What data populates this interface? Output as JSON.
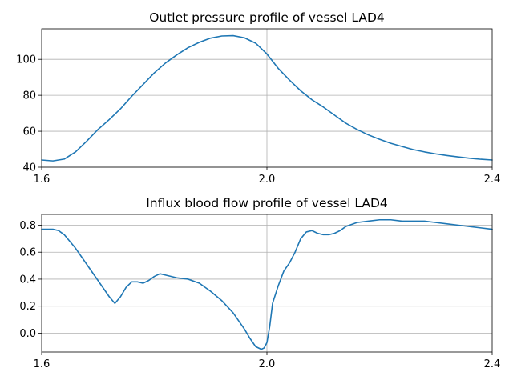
{
  "chart_data": [
    {
      "type": "line",
      "title": "Outlet pressure profile of vessel LAD4",
      "xlabel": "",
      "ylabel": "",
      "xlim": [
        1.6,
        2.4
      ],
      "ylim": [
        40,
        117
      ],
      "xticks": [
        1.6,
        2.0,
        2.4
      ],
      "xtick_labels": [
        "1.6",
        "2.0",
        "2.4"
      ],
      "yticks": [
        40,
        60,
        80,
        100
      ],
      "ytick_labels": [
        "40",
        "60",
        "80",
        "100"
      ],
      "grid": true,
      "color": "#1f77b4",
      "series": [
        {
          "x": [
            1.6,
            1.62,
            1.64,
            1.66,
            1.68,
            1.7,
            1.72,
            1.74,
            1.76,
            1.78,
            1.8,
            1.82,
            1.84,
            1.86,
            1.88,
            1.9,
            1.92,
            1.94,
            1.96,
            1.98,
            2.0,
            2.02,
            2.04,
            2.06,
            2.08,
            2.1,
            2.12,
            2.14,
            2.16,
            2.18,
            2.2,
            2.22,
            2.24,
            2.26,
            2.28,
            2.3,
            2.32,
            2.34,
            2.36,
            2.38,
            2.4
          ],
          "y": [
            44,
            43.5,
            44.5,
            48.5,
            54.5,
            61,
            66.5,
            72.5,
            79.5,
            86,
            92.5,
            98,
            102.5,
            106.5,
            109.5,
            111.8,
            113,
            113.2,
            112,
            109,
            103,
            95,
            88.5,
            82.5,
            77.5,
            73.5,
            69,
            64.5,
            61,
            58,
            55.5,
            53.3,
            51.5,
            49.8,
            48.5,
            47.4,
            46.5,
            45.7,
            45,
            44.4,
            44
          ]
        }
      ]
    },
    {
      "type": "line",
      "title": "Influx blood flow profile of vessel LAD4",
      "xlabel": "",
      "ylabel": "",
      "xlim": [
        1.6,
        2.4
      ],
      "ylim": [
        -0.14,
        0.88
      ],
      "xticks": [
        1.6,
        2.0,
        2.4
      ],
      "xtick_labels": [
        "1.6",
        "2.0",
        "2.4"
      ],
      "yticks": [
        0.0,
        0.2,
        0.4,
        0.6,
        0.8
      ],
      "ytick_labels": [
        "0.0",
        "0.2",
        "0.4",
        "0.6",
        "0.8"
      ],
      "grid": true,
      "color": "#1f77b4",
      "series": [
        {
          "x": [
            1.6,
            1.61,
            1.62,
            1.63,
            1.64,
            1.66,
            1.68,
            1.7,
            1.71,
            1.72,
            1.73,
            1.74,
            1.75,
            1.76,
            1.77,
            1.78,
            1.79,
            1.8,
            1.81,
            1.82,
            1.84,
            1.86,
            1.88,
            1.9,
            1.92,
            1.94,
            1.96,
            1.97,
            1.98,
            1.99,
            1.995,
            2.0,
            2.005,
            2.01,
            2.02,
            2.03,
            2.04,
            2.05,
            2.06,
            2.07,
            2.08,
            2.09,
            2.1,
            2.11,
            2.12,
            2.13,
            2.14,
            2.16,
            2.18,
            2.2,
            2.22,
            2.24,
            2.26,
            2.28,
            2.3,
            2.32,
            2.34,
            2.36,
            2.38,
            2.4
          ],
          "y": [
            0.77,
            0.77,
            0.77,
            0.76,
            0.73,
            0.63,
            0.51,
            0.39,
            0.33,
            0.27,
            0.22,
            0.27,
            0.34,
            0.38,
            0.38,
            0.37,
            0.39,
            0.42,
            0.44,
            0.43,
            0.41,
            0.4,
            0.37,
            0.31,
            0.24,
            0.15,
            0.03,
            -0.04,
            -0.1,
            -0.12,
            -0.11,
            -0.07,
            0.05,
            0.22,
            0.35,
            0.46,
            0.52,
            0.6,
            0.7,
            0.75,
            0.76,
            0.74,
            0.73,
            0.73,
            0.74,
            0.76,
            0.79,
            0.82,
            0.83,
            0.84,
            0.84,
            0.83,
            0.83,
            0.83,
            0.82,
            0.81,
            0.8,
            0.79,
            0.78,
            0.77
          ]
        }
      ]
    }
  ]
}
